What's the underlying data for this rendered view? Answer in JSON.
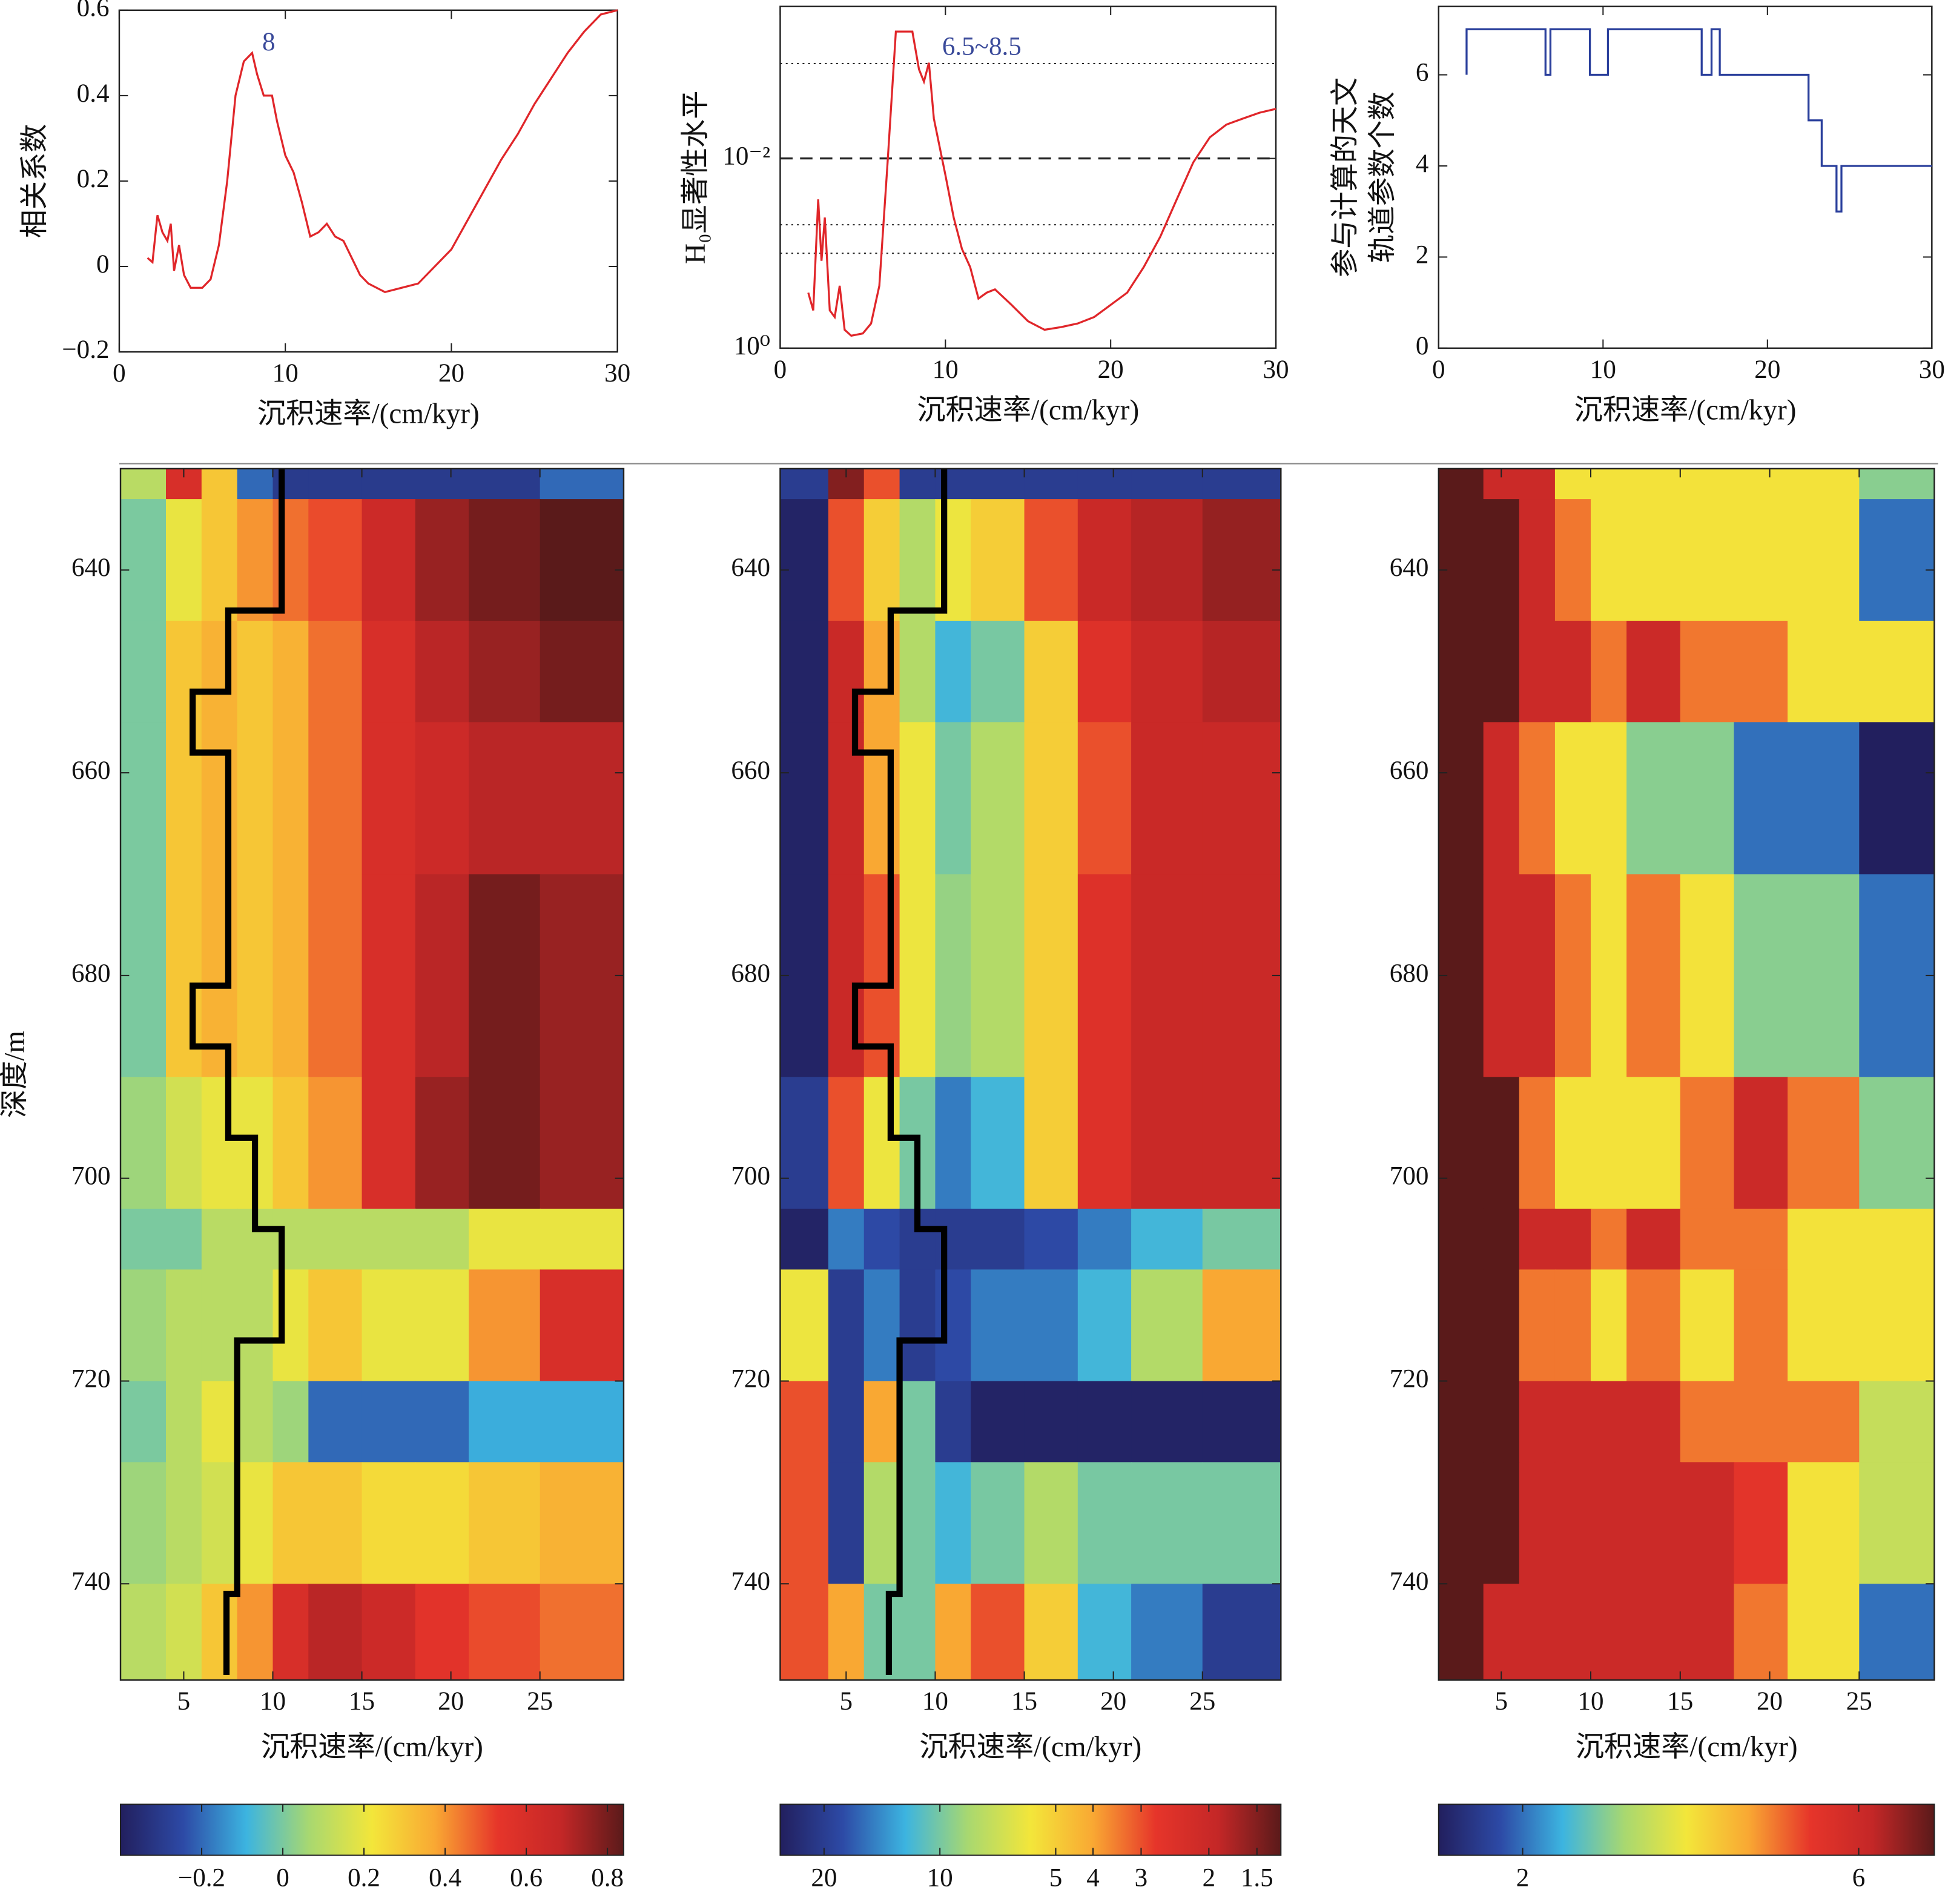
{
  "chart_data": [
    {
      "type": "line",
      "xlabel": "沉积速率/(cm/kyr)",
      "ylabel": "相关系数",
      "color": "#e0262a",
      "xlim": [
        0,
        30
      ],
      "ylim": [
        -0.2,
        0.6
      ],
      "xticks": [
        0,
        10,
        20,
        30
      ],
      "yticks": [
        {
          "value": -0.2,
          "label": "−0.2"
        },
        0,
        0.2,
        0.4,
        0.6
      ],
      "annotations": [
        {
          "text": "8",
          "x": 9,
          "y": 0.52,
          "color": "#3a4a9a"
        }
      ],
      "x": [
        1.7,
        2,
        2.3,
        2.6,
        2.9,
        3.1,
        3.3,
        3.6,
        3.9,
        4.3,
        5,
        5.5,
        6,
        6.5,
        7,
        7.5,
        8,
        8.3,
        8.7,
        9.2,
        9.5,
        10,
        10.5,
        11,
        11.5,
        12,
        12.5,
        13,
        13.5,
        14,
        14.5,
        15,
        16,
        17,
        18,
        19,
        20,
        21,
        22,
        23,
        24,
        25,
        26,
        27,
        28,
        29,
        30
      ],
      "values": [
        0.02,
        0.01,
        0.12,
        0.08,
        0.06,
        0.1,
        -0.01,
        0.05,
        -0.02,
        -0.05,
        -0.05,
        -0.03,
        0.05,
        0.2,
        0.4,
        0.48,
        0.5,
        0.45,
        0.4,
        0.4,
        0.34,
        0.26,
        0.22,
        0.15,
        0.07,
        0.08,
        0.1,
        0.07,
        0.06,
        0.02,
        -0.02,
        -0.04,
        -0.06,
        -0.05,
        -0.04,
        0.0,
        0.04,
        0.11,
        0.18,
        0.25,
        0.31,
        0.38,
        0.44,
        0.5,
        0.55,
        0.59,
        0.6
      ]
    },
    {
      "type": "line",
      "xlabel": "沉积速率/(cm/kyr)",
      "ylabel": "H₀显著性水平",
      "color": "#e0262a",
      "ylog": true,
      "xlim": [
        0,
        30
      ],
      "ylim": [
        1,
        0.00025
      ],
      "xticks": [
        0,
        10,
        20,
        30
      ],
      "yticks": [
        {
          "value": 1,
          "label": "10⁰"
        },
        {
          "value": 0.01,
          "label": "10⁻²"
        }
      ],
      "reference_lines": [
        {
          "value": 0.001,
          "style": "dotted"
        },
        {
          "value": 0.01,
          "style": "dashed"
        },
        {
          "value": 0.05,
          "style": "dotted"
        },
        {
          "value": 0.1,
          "style": "dotted"
        }
      ],
      "annotations": [
        {
          "text": "6.5~8.5",
          "x": 12.2,
          "y": 0.0007,
          "color": "#3a4a9a"
        }
      ],
      "x": [
        1.7,
        2,
        2.3,
        2.5,
        2.7,
        3,
        3.3,
        3.6,
        3.9,
        4.3,
        5,
        5.5,
        6,
        6.5,
        7,
        8,
        8.4,
        8.7,
        9,
        9.3,
        10,
        10.5,
        11,
        11.5,
        12,
        12.5,
        13,
        14,
        15,
        16,
        17,
        18,
        19,
        20,
        21,
        22,
        23,
        24,
        25,
        26,
        27,
        28,
        29,
        30
      ],
      "values": [
        0.26,
        0.4,
        0.027,
        0.12,
        0.042,
        0.4,
        0.47,
        0.22,
        0.64,
        0.74,
        0.7,
        0.55,
        0.22,
        0.011,
        0.00046,
        0.00046,
        0.00115,
        0.00155,
        0.00098,
        0.0038,
        0.015,
        0.042,
        0.09,
        0.14,
        0.3,
        0.26,
        0.24,
        0.35,
        0.52,
        0.64,
        0.6,
        0.55,
        0.47,
        0.35,
        0.26,
        0.14,
        0.067,
        0.027,
        0.011,
        0.006,
        0.0044,
        0.0038,
        0.0033,
        0.003
      ]
    },
    {
      "type": "line",
      "xlabel": "沉积速率/(cm/kyr)",
      "ylabel": [
        "参与计算的天文",
        "轨道参数个数"
      ],
      "color": "#2a3f9c",
      "xlim": [
        0,
        30
      ],
      "ylim": [
        0,
        7.5
      ],
      "xticks": [
        0,
        10,
        20,
        30
      ],
      "yticks": [
        0,
        2,
        4,
        6
      ],
      "x": [
        1.7,
        1.7,
        6.5,
        6.5,
        6.8,
        6.8,
        9.2,
        9.2,
        10.3,
        10.3,
        16,
        16,
        16.6,
        16.6,
        17.1,
        17.1,
        22.5,
        22.5,
        23.3,
        23.3,
        24.2,
        24.2,
        24.5,
        24.5,
        30
      ],
      "values": [
        6,
        7,
        7,
        6,
        6,
        7,
        7,
        6,
        6,
        7,
        7,
        6,
        6,
        7,
        7,
        6,
        6,
        5,
        5,
        4,
        4,
        3,
        3,
        4,
        4
      ]
    },
    {
      "type": "heatmap",
      "xlabel": "沉积速率/(cm/kyr)",
      "ylabel": "深度/m",
      "yreverse": true,
      "xlim": [
        1.45,
        29.7
      ],
      "ylim": [
        630,
        749.5
      ],
      "xticks": [
        5,
        10,
        15,
        20,
        25
      ],
      "yticks": [
        640,
        660,
        680,
        700,
        720,
        740
      ],
      "x_edges": [
        1.45,
        4,
        6,
        8,
        10,
        12,
        15,
        18,
        21,
        25,
        29.7
      ],
      "y_edges": [
        630,
        633,
        645,
        655,
        670,
        690,
        703,
        709,
        720,
        728,
        740,
        749.5
      ],
      "z": [
        [
          0.1,
          0.6,
          0.3,
          -0.2,
          -0.3,
          -0.3,
          -0.3,
          -0.3,
          -0.3,
          -0.2
        ],
        [
          0.0,
          0.2,
          0.3,
          0.4,
          0.45,
          0.5,
          0.65,
          0.75,
          0.8,
          0.84
        ],
        [
          0.0,
          0.3,
          0.35,
          0.3,
          0.35,
          0.45,
          0.6,
          0.7,
          0.75,
          0.8
        ],
        [
          0.0,
          0.3,
          0.35,
          0.3,
          0.35,
          0.45,
          0.6,
          0.65,
          0.7,
          0.7
        ],
        [
          0.0,
          0.3,
          0.35,
          0.3,
          0.35,
          0.45,
          0.6,
          0.7,
          0.8,
          0.75
        ],
        [
          0.05,
          0.15,
          0.2,
          0.2,
          0.3,
          0.4,
          0.6,
          0.75,
          0.8,
          0.75
        ],
        [
          0.0,
          0.0,
          0.1,
          0.1,
          0.1,
          0.1,
          0.1,
          0.1,
          0.2,
          0.2
        ],
        [
          0.05,
          0.1,
          0.1,
          0.1,
          0.2,
          0.3,
          0.2,
          0.2,
          0.4,
          0.6
        ],
        [
          0.0,
          0.1,
          0.2,
          0.1,
          0.05,
          -0.2,
          -0.2,
          -0.2,
          -0.1,
          -0.1
        ],
        [
          0.05,
          0.1,
          0.15,
          0.2,
          0.3,
          0.3,
          0.25,
          0.25,
          0.3,
          0.35
        ],
        [
          0.1,
          0.15,
          0.3,
          0.4,
          0.6,
          0.7,
          0.65,
          0.55,
          0.5,
          0.45
        ]
      ],
      "clim": [
        -0.4,
        0.84
      ],
      "cticks": [
        {
          "value": -0.2,
          "label": "−0.2"
        },
        0,
        0.2,
        0.4,
        0.6,
        0.8
      ],
      "colormap": [
        "#221f5e",
        "#2d4aa6",
        "#3cb4e0",
        "#a8d870",
        "#f3e63a",
        "#f9a833",
        "#e6352a",
        "#c42727",
        "#5a1a1a"
      ],
      "overlay": {
        "color": "#000000",
        "x": [
          10.5,
          10.5,
          7.5,
          7.5,
          5.5,
          5.5,
          7.5,
          7.5,
          5.5,
          5.5,
          7.5,
          7.5,
          9,
          9,
          10.5,
          10.5,
          8,
          8,
          7.4,
          7.4
        ],
        "y": [
          630,
          644,
          644,
          652,
          652,
          658,
          658,
          681,
          681,
          687,
          687,
          696,
          696,
          705,
          705,
          716,
          716,
          741,
          741,
          749
        ]
      }
    },
    {
      "type": "heatmap",
      "xlabel": "沉积速率/(cm/kyr)",
      "yreverse": true,
      "xlim": [
        1.3,
        29.4
      ],
      "ylim": [
        630,
        749.5
      ],
      "xticks": [
        5,
        10,
        15,
        20,
        25
      ],
      "yticks": [
        640,
        660,
        680,
        700,
        720,
        740
      ],
      "x_edges": [
        1.3,
        4,
        6,
        8,
        10,
        12,
        15,
        18,
        21,
        25,
        29.4
      ],
      "y_edges": [
        630,
        633,
        645,
        655,
        670,
        690,
        703,
        709,
        720,
        728,
        740,
        749.5
      ],
      "z": [
        [
          20,
          1.5,
          3,
          20,
          20,
          20,
          20,
          20,
          20,
          20
        ],
        [
          25,
          3,
          5,
          8,
          6,
          5,
          3,
          2,
          1.8,
          1.6
        ],
        [
          25,
          2,
          4,
          8,
          12,
          10,
          5,
          2.5,
          2,
          1.8
        ],
        [
          25,
          2,
          4,
          6,
          10,
          8,
          5,
          3,
          2,
          2
        ],
        [
          25,
          2,
          3,
          6,
          9,
          8,
          5,
          2.5,
          2,
          2
        ],
        [
          20,
          3,
          6,
          10,
          15,
          12,
          5,
          2.5,
          2,
          2
        ],
        [
          25,
          15,
          18,
          20,
          20,
          20,
          18,
          15,
          12,
          10
        ],
        [
          6,
          20,
          15,
          20,
          18,
          15,
          15,
          12,
          8,
          4
        ],
        [
          3,
          20,
          4,
          10,
          20,
          25,
          25,
          25,
          25,
          25
        ],
        [
          3,
          20,
          8,
          10,
          12,
          10,
          8,
          10,
          10,
          10
        ],
        [
          3,
          4,
          10,
          10,
          4,
          3,
          5,
          12,
          15,
          20
        ]
      ],
      "clog": true,
      "clim": [
        26,
        1.3
      ],
      "cticks": [
        20,
        10,
        5,
        4,
        3,
        2,
        1.5
      ],
      "colormap": [
        "#221f5e",
        "#2d4aa6",
        "#3cb4e0",
        "#a8d870",
        "#f3e63a",
        "#f9a833",
        "#e6352a",
        "#c42727",
        "#5a1a1a"
      ],
      "overlay": {
        "color": "#000000",
        "x": [
          10.5,
          10.5,
          7.5,
          7.5,
          5.5,
          5.5,
          7.5,
          7.5,
          5.5,
          5.5,
          7.5,
          7.5,
          9,
          9,
          10.5,
          10.5,
          8,
          8,
          7.4,
          7.4
        ],
        "y": [
          630,
          644,
          644,
          652,
          652,
          658,
          658,
          681,
          681,
          687,
          687,
          696,
          696,
          705,
          705,
          716,
          716,
          741,
          741,
          749
        ]
      }
    },
    {
      "type": "heatmap",
      "xlabel": "沉积速率/(cm/kyr)",
      "yreverse": true,
      "xlim": [
        1.5,
        29.2
      ],
      "ylim": [
        630,
        749.5
      ],
      "xticks": [
        5,
        10,
        15,
        20,
        25
      ],
      "yticks": [
        640,
        660,
        680,
        700,
        720,
        740
      ],
      "x_edges": [
        1.5,
        4,
        6,
        8,
        10,
        12,
        15,
        18,
        21,
        25,
        29.2
      ],
      "y_edges": [
        630,
        633,
        645,
        655,
        670,
        690,
        703,
        709,
        720,
        728,
        740,
        749.5
      ],
      "z": [
        [
          7,
          6,
          6,
          4,
          4,
          4,
          4,
          4,
          4,
          3
        ],
        [
          7,
          7,
          6,
          5,
          4,
          4,
          4,
          4,
          4,
          2
        ],
        [
          7,
          7,
          6,
          6,
          5,
          6,
          5,
          5,
          4,
          4
        ],
        [
          7,
          6,
          5,
          4,
          4,
          3,
          3,
          2,
          2,
          1
        ],
        [
          7,
          6,
          6,
          5,
          4,
          5,
          4,
          3,
          3,
          2
        ],
        [
          7,
          7,
          5,
          4,
          4,
          4,
          5,
          6,
          5,
          3
        ],
        [
          7,
          7,
          6,
          6,
          5,
          6,
          5,
          5,
          4,
          4
        ],
        [
          7,
          7,
          5,
          5,
          4,
          5,
          4,
          5,
          4,
          4
        ],
        [
          7,
          7,
          6,
          6,
          6,
          6,
          5,
          5,
          5,
          3.5
        ],
        [
          7,
          7,
          6,
          6,
          6,
          6,
          6,
          5.5,
          4,
          3.5
        ],
        [
          7,
          6,
          6,
          6,
          6,
          6,
          6,
          5,
          4,
          2
        ]
      ],
      "clim": [
        1,
        6.9
      ],
      "cticks": [
        2,
        6
      ],
      "colormap": [
        "#221f5e",
        "#2d4aa6",
        "#3cb4e0",
        "#a8d870",
        "#f3e63a",
        "#f9a833",
        "#e6352a",
        "#c42727",
        "#5a1a1a"
      ]
    }
  ]
}
